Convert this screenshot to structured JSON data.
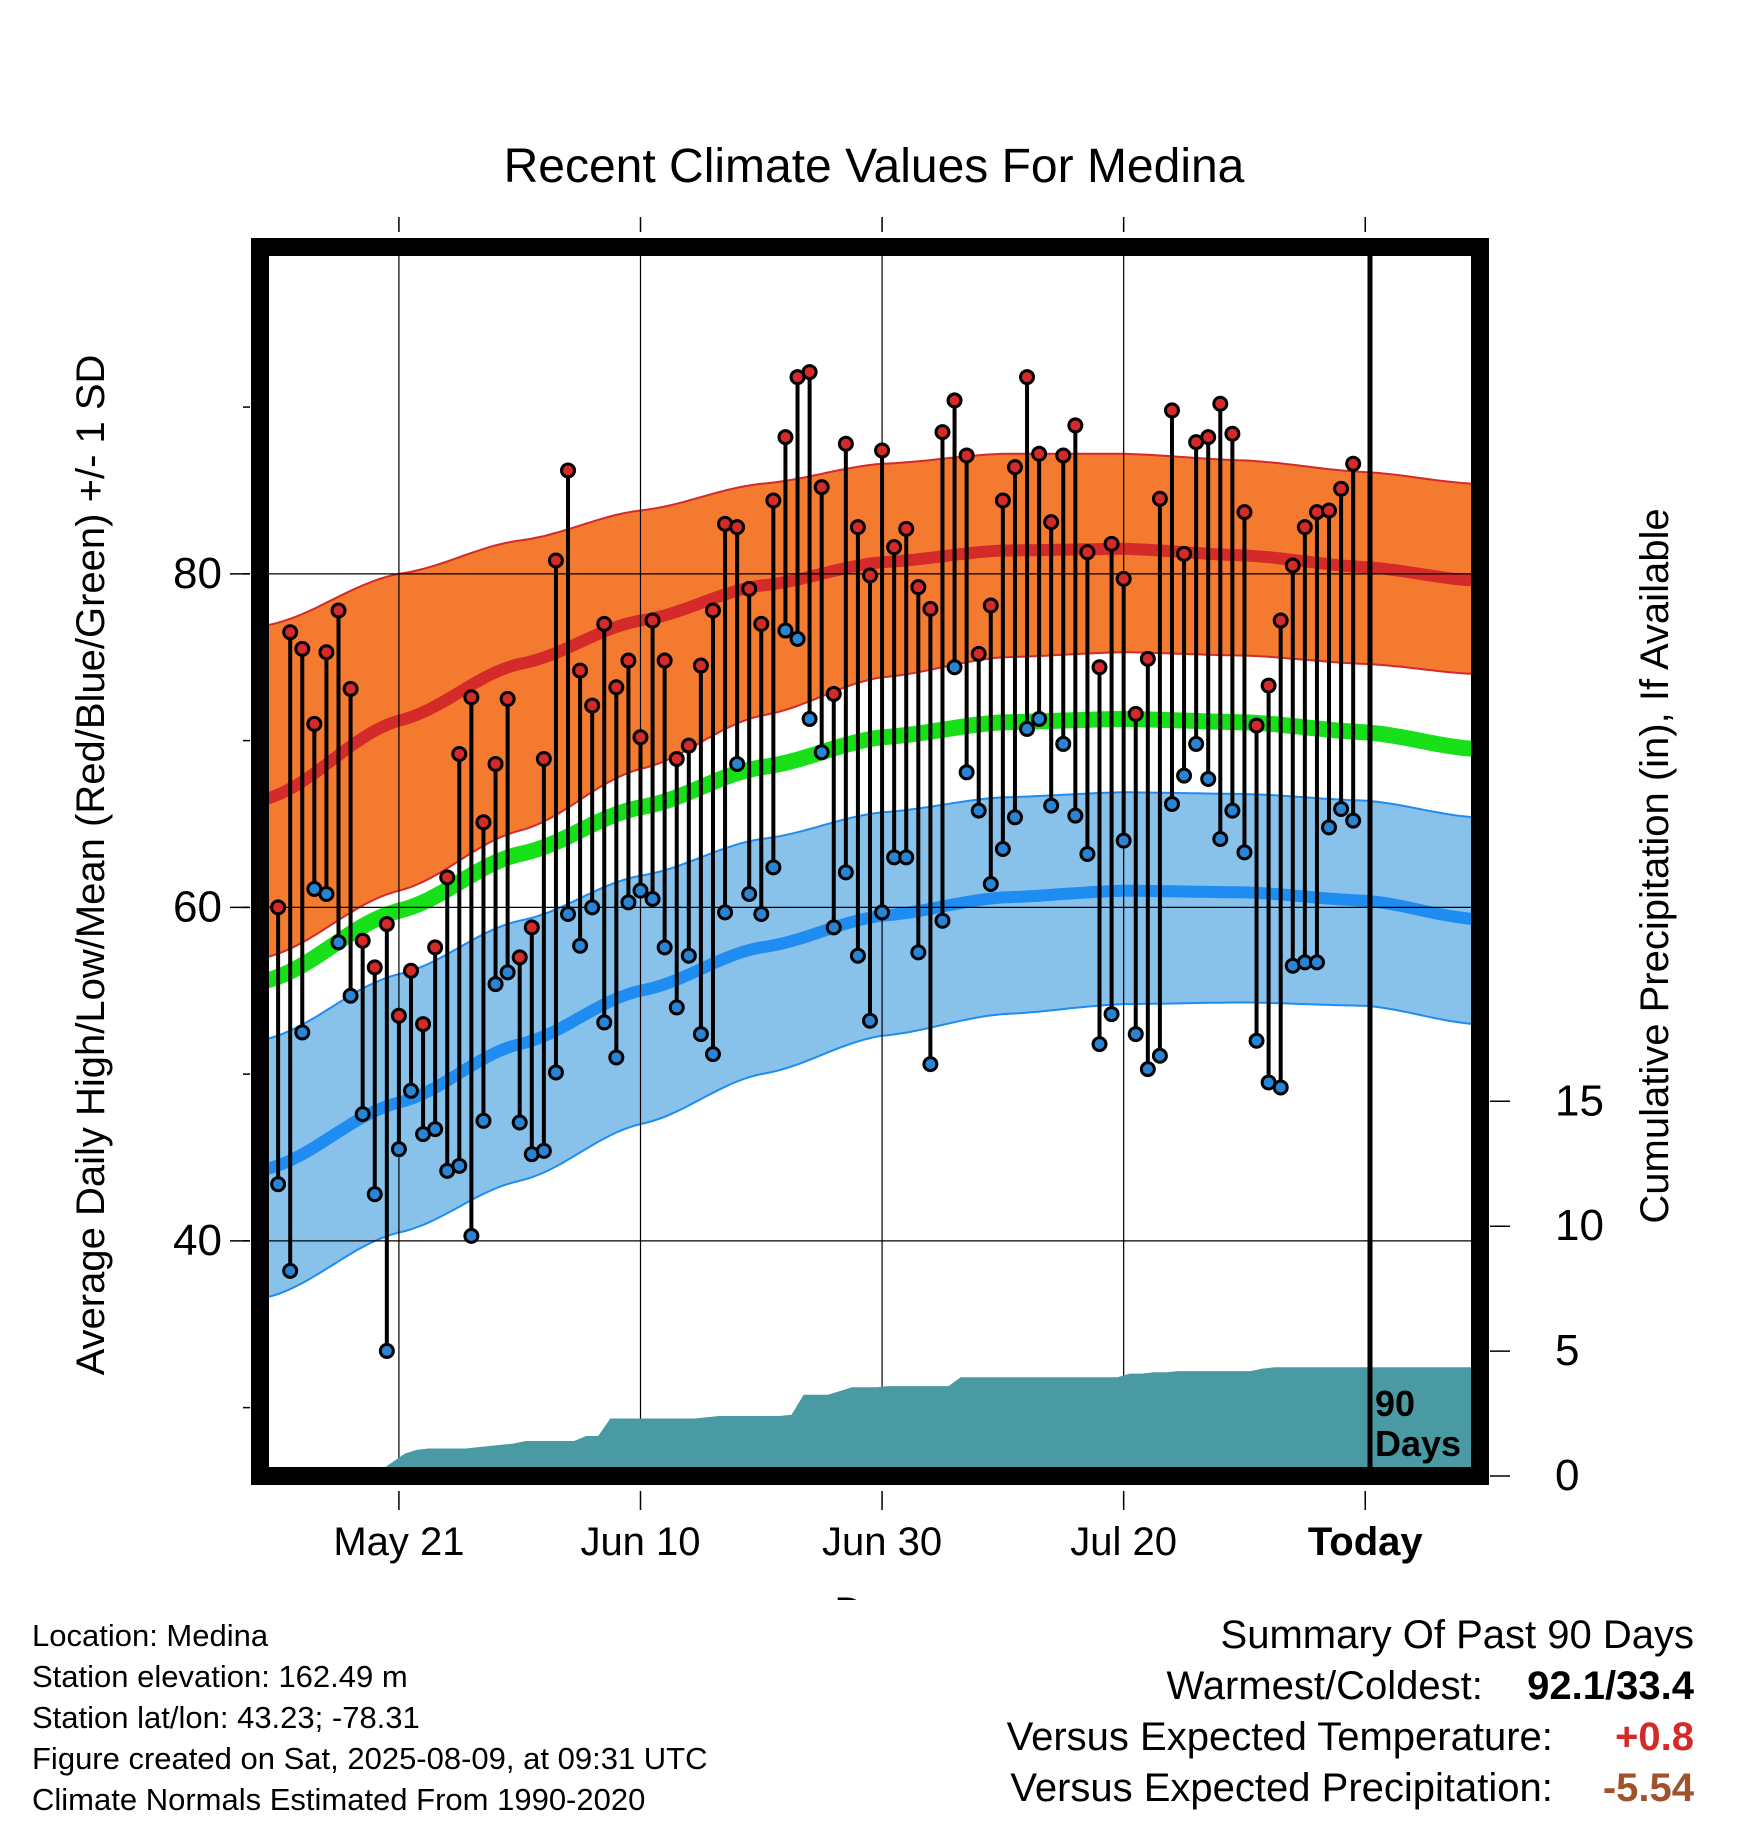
{
  "chart_data": {
    "type": "line",
    "title": "Recent Climate Values For Medina",
    "xlabel": "Day",
    "ylabel_left": "Average Daily High/Low/Mean (Red/Blue/Green) +/- 1 SD",
    "ylabel_right": "Cumulative Precipitation (in), If Available",
    "x_ticks": [
      {
        "day": 0,
        "label": "May 21"
      },
      {
        "day": 20,
        "label": "Jun 10"
      },
      {
        "day": 40,
        "label": "Jun 30"
      },
      {
        "day": 60,
        "label": "Jul 20"
      },
      {
        "day": 80,
        "label": "Today"
      }
    ],
    "x_range_days": [
      -11.5,
      89.5
    ],
    "y_left_ticks": [
      40,
      60,
      80
    ],
    "y_left_range": [
      25.9,
      99.6
    ],
    "y_right_ticks": [
      0,
      5,
      10,
      15
    ],
    "y_right_range": [
      0,
      49.2
    ],
    "today_marker": {
      "day": 80,
      "label_line1": "90",
      "label_line2": "Days"
    },
    "normals": {
      "days": [
        -11,
        0,
        10,
        20,
        30,
        40,
        50,
        60,
        70,
        80,
        89
      ],
      "high_mean": [
        66.5,
        71.2,
        74.6,
        77.2,
        79.3,
        80.7,
        81.4,
        81.5,
        81.1,
        80.4,
        79.6
      ],
      "high_upper": [
        76.9,
        80.0,
        82.0,
        83.8,
        85.4,
        86.6,
        87.2,
        87.2,
        86.8,
        86.1,
        85.4
      ],
      "high_lower": [
        57.0,
        61.0,
        64.6,
        68.3,
        71.5,
        73.8,
        75.0,
        75.3,
        75.1,
        74.6,
        74.0
      ],
      "mean": [
        55.6,
        59.8,
        63.2,
        66.0,
        68.4,
        70.2,
        71.1,
        71.3,
        71.1,
        70.5,
        69.5
      ],
      "low_mean": [
        44.3,
        48.3,
        51.8,
        55.0,
        57.6,
        59.5,
        60.6,
        61.0,
        60.9,
        60.4,
        59.3
      ],
      "low_upper": [
        52.1,
        56.0,
        59.2,
        61.9,
        64.1,
        65.7,
        66.6,
        66.9,
        66.8,
        66.4,
        65.4
      ],
      "low_lower": [
        36.6,
        40.5,
        43.6,
        47.0,
        50.0,
        52.3,
        53.6,
        54.2,
        54.3,
        54.1,
        53.0
      ]
    },
    "series": [
      {
        "name": "High",
        "color": "#d42a2a",
        "values": [
          60.0,
          76.5,
          75.5,
          71.0,
          75.3,
          77.8,
          73.1,
          58.0,
          56.4,
          59.0,
          53.5,
          56.2,
          53.0,
          57.6,
          61.8,
          69.2,
          72.6,
          65.1,
          68.6,
          72.5,
          57.0,
          58.8,
          68.9,
          80.8,
          86.2,
          74.2,
          72.1,
          77.0,
          73.2,
          74.8,
          70.2,
          77.2,
          74.8,
          68.9,
          69.7,
          74.5,
          77.8,
          83.0,
          82.8,
          79.1,
          77.0,
          84.4,
          88.2,
          91.8,
          92.1,
          85.2,
          72.8,
          87.8,
          82.8,
          79.9,
          87.4,
          81.6,
          82.7,
          79.2,
          77.9,
          88.5,
          90.4,
          87.1,
          75.2,
          78.1,
          84.4,
          86.4,
          91.8,
          87.2,
          83.1,
          87.1,
          88.9,
          81.3,
          74.4,
          81.8,
          79.7,
          71.6,
          74.9,
          84.5,
          89.8,
          81.2,
          87.9,
          88.2,
          90.2,
          88.4,
          83.7,
          70.9,
          73.3,
          77.2,
          80.5,
          82.8,
          83.7,
          83.8,
          85.1,
          86.6
        ]
      },
      {
        "name": "Low",
        "color": "#2a84d4",
        "values": [
          43.4,
          38.2,
          52.5,
          61.1,
          60.8,
          57.9,
          54.7,
          47.6,
          42.8,
          33.4,
          45.5,
          49.0,
          46.4,
          46.7,
          44.2,
          44.5,
          40.3,
          47.2,
          55.4,
          56.1,
          47.1,
          45.2,
          45.4,
          50.1,
          59.6,
          57.7,
          60.0,
          53.1,
          51.0,
          60.3,
          61.0,
          60.5,
          57.6,
          54.0,
          57.1,
          52.4,
          51.2,
          59.7,
          68.6,
          60.8,
          59.6,
          62.4,
          76.6,
          76.1,
          71.3,
          69.3,
          58.8,
          62.1,
          57.1,
          53.2,
          59.7,
          63.0,
          63.0,
          57.3,
          50.6,
          59.2,
          74.4,
          68.1,
          65.8,
          61.4,
          63.5,
          65.4,
          70.7,
          71.3,
          66.1,
          69.8,
          65.5,
          63.2,
          51.8,
          53.6,
          64.0,
          52.4,
          50.3,
          51.1,
          66.2,
          67.9,
          69.8,
          67.7,
          64.1,
          65.8,
          63.3,
          52.0,
          49.5,
          49.2,
          56.5,
          56.7,
          56.7,
          64.8,
          65.9,
          65.2
        ]
      }
    ],
    "precip_cumulative": {
      "days": [
        -11.5,
        -1.5,
        -1.0,
        0.5,
        1.5,
        2.5,
        3.5,
        4.5,
        5.5,
        6.5,
        7.5,
        8.5,
        9.5,
        10.5,
        11.5,
        12.5,
        13.5,
        14.5,
        15.5,
        16.5,
        17.5,
        18.5,
        19.5,
        20.5,
        21.5,
        22.5,
        23.5,
        24.5,
        25.5,
        26.5,
        27.5,
        28.5,
        29.5,
        30.5,
        31.5,
        32.5,
        33.5,
        34.5,
        35.5,
        36.5,
        37.5,
        38.5,
        39.5,
        40.5,
        41.5,
        42.5,
        43.5,
        44.5,
        45.5,
        46.5,
        47.5,
        48.5,
        49.5,
        50.5,
        51.5,
        52.5,
        53.5,
        54.5,
        55.5,
        56.5,
        57.5,
        58.5,
        59.5,
        60.5,
        61.5,
        62.5,
        63.5,
        64.5,
        65.5,
        66.5,
        67.5,
        68.5,
        69.5,
        70.5,
        71.5,
        72.5,
        73.5,
        74.5,
        75.5,
        76.5,
        77.5,
        78.5,
        79.5,
        80.5,
        89.5
      ],
      "values": [
        0,
        0,
        0.4,
        0.9,
        1.05,
        1.1,
        1.1,
        1.1,
        1.1,
        1.15,
        1.2,
        1.25,
        1.3,
        1.4,
        1.4,
        1.4,
        1.4,
        1.4,
        1.6,
        1.6,
        2.3,
        2.3,
        2.3,
        2.3,
        2.3,
        2.3,
        2.3,
        2.3,
        2.35,
        2.4,
        2.4,
        2.4,
        2.4,
        2.4,
        2.4,
        2.45,
        3.25,
        3.25,
        3.25,
        3.4,
        3.55,
        3.55,
        3.55,
        3.6,
        3.6,
        3.6,
        3.6,
        3.6,
        3.6,
        3.95,
        3.95,
        3.95,
        3.95,
        3.95,
        3.95,
        3.95,
        3.95,
        3.95,
        3.95,
        3.95,
        3.95,
        3.95,
        3.95,
        4.1,
        4.1,
        4.15,
        4.15,
        4.2,
        4.2,
        4.2,
        4.2,
        4.2,
        4.2,
        4.2,
        4.3,
        4.35,
        4.35,
        4.35,
        4.35,
        4.35,
        4.35,
        4.35,
        4.35,
        4.35,
        4.35
      ]
    },
    "colors": {
      "high_band": "#f47a30",
      "high_line": "#d42a2a",
      "mean_line": "#18e018",
      "low_band": "#88c2ea",
      "low_line": "#1e8cf0",
      "precip": "#4a9aa4",
      "frame": "#000000",
      "grid": "#000000"
    }
  },
  "meta": {
    "location": "Location: Medina",
    "elevation": "Station elevation: 162.49 m",
    "latlon": "Station lat/lon: 43.23; -78.31",
    "created": "Figure created on Sat, 2025-08-09, at 09:31 UTC",
    "normals": "Climate Normals Estimated From 1990-2020"
  },
  "summary": {
    "heading": "Summary Of Past 90 Days",
    "warm_cold_label": "Warmest/Coldest:",
    "warm_cold_value": "92.1/33.4",
    "temp_label": "Versus Expected Temperature:",
    "temp_value": "+0.8",
    "temp_color": "#d42a2a",
    "precip_label": "Versus Expected Precipitation:",
    "precip_value": "-5.54",
    "precip_color": "#a0522d"
  }
}
